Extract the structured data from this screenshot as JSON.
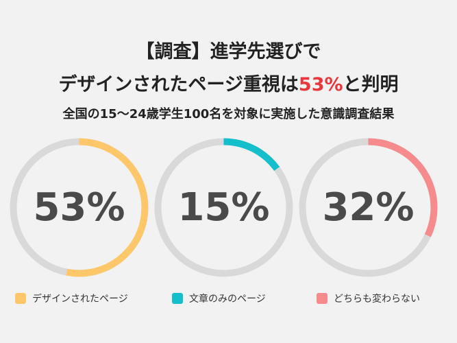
{
  "header": {
    "line1": "【調査】進学先選びで",
    "line2_prefix": "デザインされたページ重視は",
    "line2_highlight": "53%",
    "line2_suffix": "と判明",
    "subtitle": "全国の15〜24歳学生100名を対象に実施した意識調査結果"
  },
  "chart_data": {
    "type": "pie",
    "title": "【調査】進学先選びで デザインされたページ重視は53%と判明",
    "subtitle": "全国の15〜24歳学生100名を対象に実施した意識調査結果",
    "track_color": "#d9d9d9",
    "series": [
      {
        "name": "デザインされたページ",
        "value": 53,
        "label": "53%",
        "color": "#fdc76a"
      },
      {
        "name": "文章のみのページ",
        "value": 15,
        "label": "15%",
        "color": "#14bfcb"
      },
      {
        "name": "どちらも変わらない",
        "value": 32,
        "label": "32%",
        "color": "#f68b8e"
      }
    ],
    "legend_position": "bottom"
  }
}
